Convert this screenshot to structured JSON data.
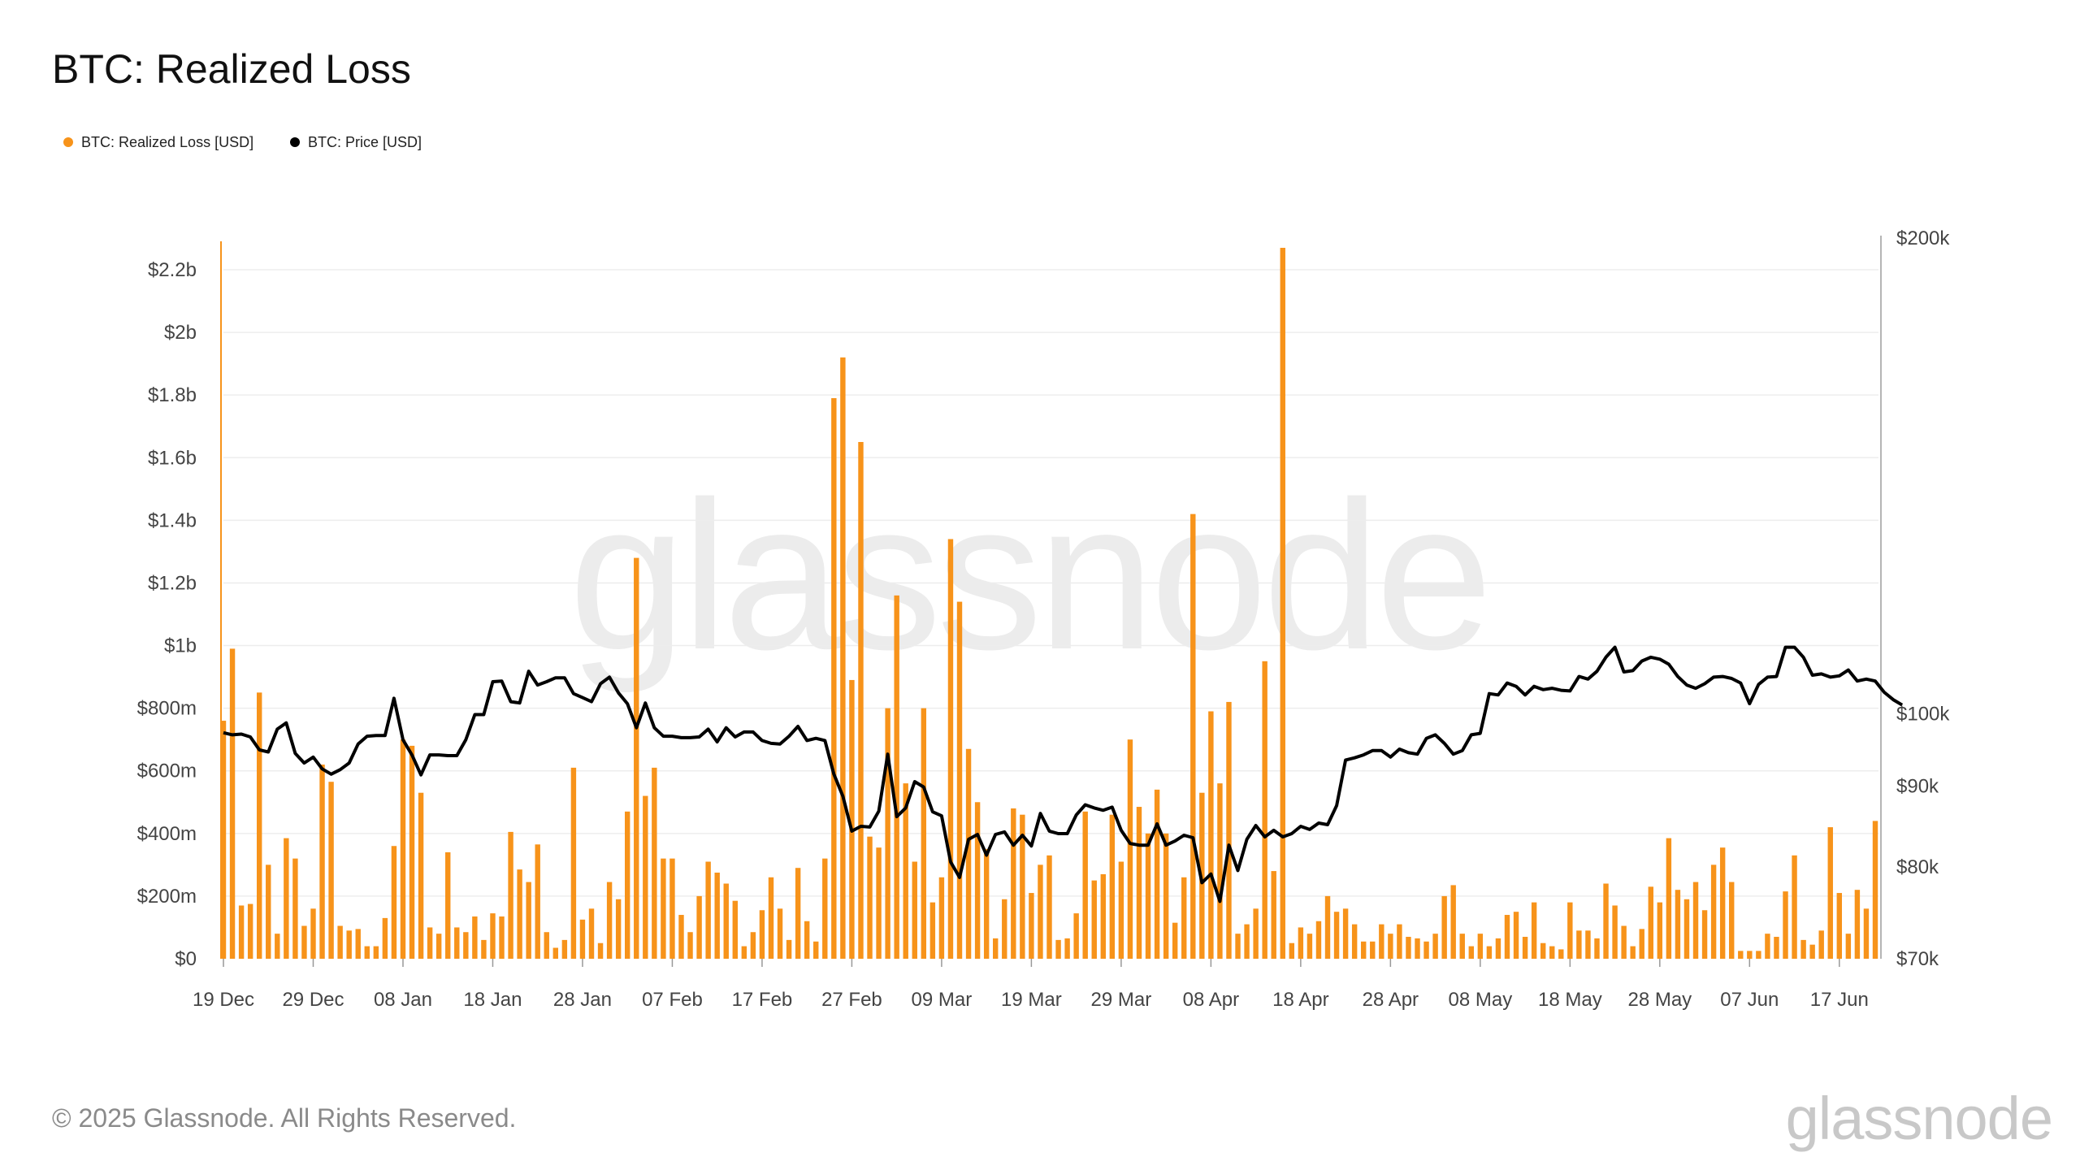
{
  "chart_data": {
    "type": "bar",
    "title": "BTC: Realized Loss",
    "legend_position": "top-left",
    "grid": true,
    "colors": {
      "loss": "#f7931a",
      "price": "#000000"
    },
    "y_left": {
      "ylim": [
        0,
        2300000000
      ],
      "ticks": [
        0,
        200000000,
        400000000,
        600000000,
        800000000,
        1000000000,
        1200000000,
        1400000000,
        1600000000,
        1800000000,
        2000000000,
        2200000000
      ],
      "tick_labels": [
        "$0",
        "$200m",
        "$400m",
        "$600m",
        "$800m",
        "$1b",
        "$1.2b",
        "$1.4b",
        "$1.6b",
        "$1.8b",
        "$2b",
        "$2.2b"
      ]
    },
    "y_right": {
      "scale": "log",
      "ylim": [
        70000,
        200000
      ],
      "ticks": [
        70000,
        80000,
        90000,
        100000,
        200000
      ],
      "tick_labels": [
        "$70k",
        "$80k",
        "$90k",
        "$100k",
        "$200k"
      ]
    },
    "x_tick_labels": [
      "19 Dec",
      "29 Dec",
      "08 Jan",
      "18 Jan",
      "28 Jan",
      "07 Feb",
      "17 Feb",
      "27 Feb",
      "09 Mar",
      "19 Mar",
      "29 Mar",
      "08 Apr",
      "18 Apr",
      "28 Apr",
      "08 May",
      "18 May",
      "28 May",
      "07 Jun",
      "17 Jun"
    ],
    "x_tick_index": [
      0,
      10,
      20,
      30,
      40,
      50,
      60,
      70,
      80,
      90,
      100,
      110,
      120,
      130,
      140,
      150,
      160,
      170,
      180
    ],
    "series": [
      {
        "name": "BTC: Realized Loss [USD]",
        "type": "bar",
        "axis": "left",
        "values": [
          760000000,
          990000000,
          170000000,
          175000000,
          850000000,
          300000000,
          80000000,
          385000000,
          320000000,
          105000000,
          160000000,
          620000000,
          565000000,
          105000000,
          90000000,
          95000000,
          40000000,
          40000000,
          130000000,
          360000000,
          700000000,
          680000000,
          530000000,
          100000000,
          80000000,
          340000000,
          100000000,
          85000000,
          135000000,
          60000000,
          145000000,
          135000000,
          405000000,
          285000000,
          245000000,
          365000000,
          85000000,
          35000000,
          60000000,
          610000000,
          125000000,
          160000000,
          50000000,
          245000000,
          190000000,
          470000000,
          1280000000,
          520000000,
          610000000,
          320000000,
          320000000,
          140000000,
          85000000,
          200000000,
          310000000,
          275000000,
          240000000,
          185000000,
          40000000,
          85000000,
          155000000,
          260000000,
          160000000,
          60000000,
          290000000,
          120000000,
          55000000,
          320000000,
          1790000000,
          1920000000,
          890000000,
          1650000000,
          390000000,
          355000000,
          800000000,
          1160000000,
          560000000,
          310000000,
          800000000,
          180000000,
          260000000,
          1340000000,
          1140000000,
          670000000,
          500000000,
          350000000,
          65000000,
          190000000,
          480000000,
          460000000,
          210000000,
          300000000,
          330000000,
          60000000,
          65000000,
          145000000,
          470000000,
          250000000,
          270000000,
          460000000,
          310000000,
          700000000,
          485000000,
          400000000,
          540000000,
          400000000,
          115000000,
          260000000,
          1420000000,
          530000000,
          790000000,
          560000000,
          820000000,
          80000000,
          110000000,
          160000000,
          950000000,
          280000000,
          2270000000,
          50000000,
          100000000,
          80000000,
          120000000,
          200000000,
          150000000,
          160000000,
          110000000,
          55000000,
          55000000,
          110000000,
          80000000,
          110000000,
          70000000,
          65000000,
          55000000,
          80000000,
          200000000,
          235000000,
          80000000,
          40000000,
          80000000,
          40000000,
          65000000,
          140000000,
          150000000,
          70000000,
          180000000,
          50000000,
          40000000,
          30000000,
          180000000,
          90000000,
          90000000,
          65000000,
          240000000,
          170000000,
          105000000,
          40000000,
          95000000,
          230000000,
          180000000,
          385000000,
          220000000,
          190000000,
          245000000,
          155000000,
          300000000,
          355000000,
          245000000,
          25000000,
          25000000,
          25000000,
          80000000,
          70000000,
          215000000,
          330000000,
          60000000,
          45000000,
          90000000,
          420000000,
          210000000,
          80000000,
          220000000,
          160000000,
          440000000
        ]
      },
      {
        "name": "BTC: Price [USD]",
        "type": "line",
        "axis": "right",
        "values": [
          97300,
          97000,
          97100,
          96700,
          94900,
          94600,
          97800,
          98700,
          94400,
          93100,
          93900,
          92300,
          91600,
          92200,
          93100,
          95700,
          96800,
          96900,
          96900,
          102300,
          96300,
          94200,
          91500,
          94200,
          94200,
          94100,
          94100,
          96300,
          99900,
          99900,
          104800,
          104900,
          101800,
          101600,
          106400,
          104300,
          104800,
          105400,
          105400,
          103000,
          102400,
          101800,
          104500,
          105500,
          103100,
          101500,
          98000,
          101600,
          98000,
          96800,
          96800,
          96600,
          96600,
          96700,
          97800,
          96000,
          98000,
          96700,
          97400,
          97400,
          96200,
          95800,
          95700,
          96800,
          98200,
          96200,
          96500,
          96200,
          91600,
          88700,
          84300,
          84900,
          84800,
          86800,
          94300,
          86100,
          87200,
          90600,
          89900,
          86700,
          86200,
          80600,
          78800,
          83300,
          83900,
          81400,
          83900,
          84200,
          82600,
          83800,
          82500,
          86500,
          84300,
          84000,
          84000,
          86300,
          87600,
          87200,
          86900,
          87300,
          84400,
          82800,
          82600,
          82600,
          85200,
          82600,
          83100,
          83800,
          83500,
          78200,
          79200,
          76100,
          82600,
          79600,
          83300,
          85000,
          83600,
          84400,
          83600,
          84000,
          84900,
          84500,
          85300,
          85100,
          87500,
          93500,
          93800,
          94200,
          94800,
          94800,
          93900,
          95000,
          94500,
          94300,
          96500,
          97000,
          95800,
          94300,
          94800,
          97000,
          97200,
          103000,
          102800,
          104600,
          104100,
          102800,
          104100,
          103600,
          103800,
          103500,
          103400,
          105600,
          105200,
          106400,
          108600,
          110200,
          106300,
          106500,
          108000,
          108600,
          108300,
          107500,
          105600,
          104300,
          103800,
          104500,
          105500,
          105600,
          105300,
          104600,
          101500,
          104400,
          105500,
          105600,
          110200,
          110200,
          108600,
          105800,
          106000,
          105500,
          105700,
          106600,
          104900,
          105200,
          104900,
          103200,
          102100,
          101300
        ]
      }
    ]
  },
  "footer": {
    "copyright": "© 2025 Glassnode. All Rights Reserved.",
    "logo": "glassnode"
  }
}
